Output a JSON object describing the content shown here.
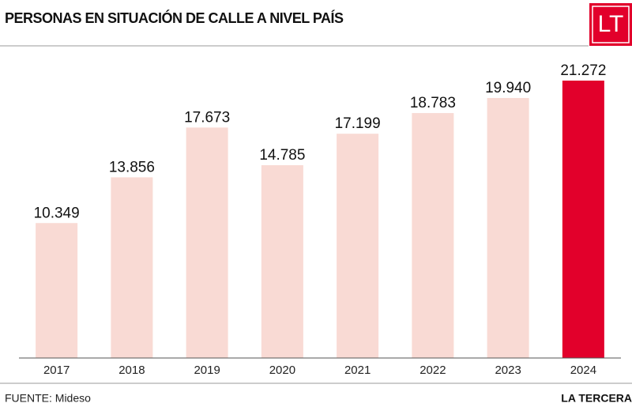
{
  "chart_data": {
    "type": "bar",
    "title": "PERSONAS EN SITUACIÓN DE CALLE A NIVEL PAÍS",
    "logo": "LT",
    "source": "FUENTE: Mideso",
    "brand": "LA TERCERA",
    "categories": [
      "2017",
      "2018",
      "2019",
      "2020",
      "2021",
      "2022",
      "2023",
      "2024"
    ],
    "values": [
      10349,
      13856,
      17673,
      14785,
      17199,
      18783,
      19940,
      21272
    ],
    "value_labels": [
      "10.349",
      "13.856",
      "17.673",
      "14.785",
      "17.199",
      "18.783",
      "19.940",
      "21.272"
    ],
    "colors": [
      "#f9dad4",
      "#f9dad4",
      "#f9dad4",
      "#f9dad4",
      "#f9dad4",
      "#f9dad4",
      "#f9dad4",
      "#e2002b"
    ]
  }
}
